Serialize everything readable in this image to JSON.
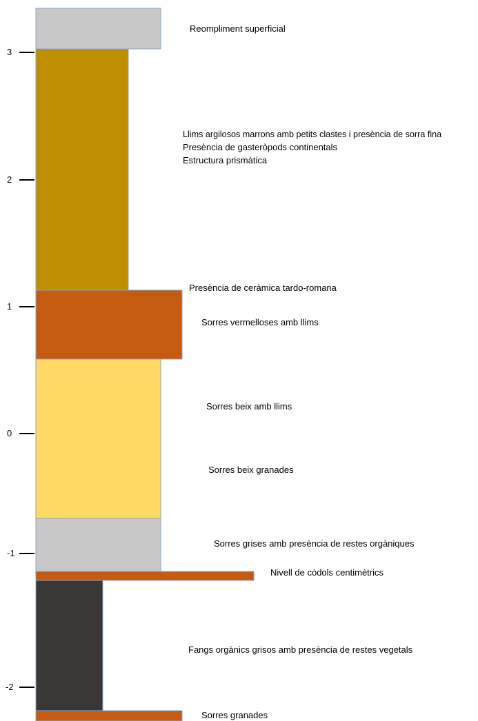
{
  "axis": {
    "ticks": [
      {
        "value": 3,
        "label": "3"
      },
      {
        "value": 2,
        "label": "2"
      },
      {
        "value": 1,
        "label": "1"
      },
      {
        "value": 0,
        "label": "0"
      },
      {
        "value": -1,
        "label": "-1"
      },
      {
        "value": -2,
        "label": "-2"
      }
    ]
  },
  "layers": [
    {
      "id": "reompliment",
      "top": 3.33,
      "bottom": 3.02,
      "color": "#C8C8C8"
    },
    {
      "id": "llims-argilosos",
      "top": 3.02,
      "bottom": 1.12,
      "color": "#BF8F00"
    },
    {
      "id": "sorres-vermelloses",
      "top": 1.12,
      "bottom": 0.59,
      "color": "#C55A11"
    },
    {
      "id": "sorres-beix",
      "top": 0.59,
      "bottom": -0.66,
      "color": "#FFD966"
    },
    {
      "id": "sorres-grises",
      "top": -0.66,
      "bottom": -1.08,
      "color": "#C8C8C8"
    },
    {
      "id": "codols",
      "top": -1.08,
      "bottom": -1.16,
      "color": "#C55A11"
    },
    {
      "id": "fangs-organics",
      "top": -1.16,
      "bottom": -2.18,
      "color": "#3A3836"
    },
    {
      "id": "sorres-granades",
      "top": -2.18,
      "bottom": -2.26,
      "color": "#C55A11"
    }
  ],
  "labels": {
    "reompliment": "Reompliment superficial",
    "llims_1": "Llims argilosos marrons amb petits clastes i presència de sorra fina",
    "llims_2": "Presència de gasteròpods continentals",
    "llims_3": "Estructura prismàtica",
    "ceramica": "Presència de ceràmica tardo-romana",
    "vermelloses": "Sorres vermelloses amb llims",
    "beix_llims": "Sorres beix amb llims",
    "beix_granades": "Sorres beix granades",
    "grises": "Sorres grises amb presència de restes orgàniques",
    "codols": "Nivell de còdols centimètrics",
    "fangs": "Fangs orgànics grisos amb presència de restes vegetals",
    "granades": "Sorres granades"
  }
}
